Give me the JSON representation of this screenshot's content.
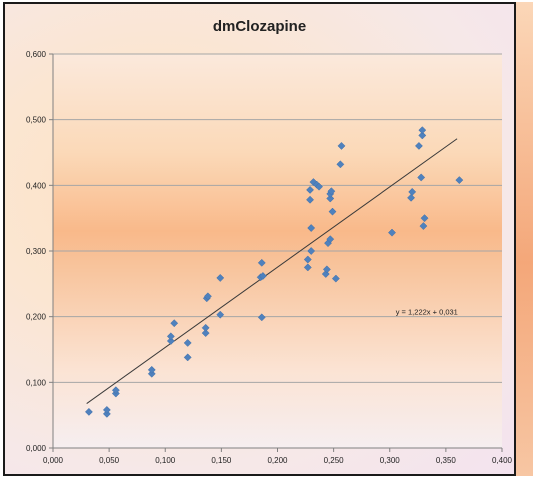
{
  "chart_data": {
    "type": "scatter",
    "title": "dmClozapine",
    "xlabel": "",
    "ylabel": "",
    "xlim": [
      0,
      0.4
    ],
    "ylim": [
      0,
      0.6
    ],
    "x_ticks": [
      "0,000",
      "0,050",
      "0,100",
      "0,150",
      "0,200",
      "0,250",
      "0,300",
      "0,350",
      "0,400"
    ],
    "y_ticks": [
      "0,000",
      "0,100",
      "0,200",
      "0,300",
      "0,400",
      "0,500",
      "0,600"
    ],
    "grid": "horizontal",
    "marker_color": "#4f81bd",
    "trendline": {
      "slope": 1.222,
      "intercept": 0.031,
      "label": "y = 1,222x + 0,031",
      "x_range": [
        0.03,
        0.36
      ]
    },
    "points": [
      [
        0.032,
        0.055
      ],
      [
        0.048,
        0.052
      ],
      [
        0.048,
        0.058
      ],
      [
        0.056,
        0.083
      ],
      [
        0.056,
        0.088
      ],
      [
        0.088,
        0.113
      ],
      [
        0.088,
        0.119
      ],
      [
        0.105,
        0.163
      ],
      [
        0.105,
        0.17
      ],
      [
        0.108,
        0.19
      ],
      [
        0.12,
        0.138
      ],
      [
        0.12,
        0.16
      ],
      [
        0.136,
        0.175
      ],
      [
        0.136,
        0.183
      ],
      [
        0.137,
        0.228
      ],
      [
        0.138,
        0.231
      ],
      [
        0.149,
        0.203
      ],
      [
        0.149,
        0.259
      ],
      [
        0.186,
        0.199
      ],
      [
        0.185,
        0.26
      ],
      [
        0.187,
        0.262
      ],
      [
        0.186,
        0.282
      ],
      [
        0.227,
        0.275
      ],
      [
        0.227,
        0.287
      ],
      [
        0.23,
        0.3
      ],
      [
        0.23,
        0.335
      ],
      [
        0.229,
        0.378
      ],
      [
        0.229,
        0.393
      ],
      [
        0.232,
        0.405
      ],
      [
        0.235,
        0.401
      ],
      [
        0.237,
        0.398
      ],
      [
        0.243,
        0.265
      ],
      [
        0.244,
        0.272
      ],
      [
        0.245,
        0.312
      ],
      [
        0.247,
        0.318
      ],
      [
        0.247,
        0.38
      ],
      [
        0.247,
        0.387
      ],
      [
        0.248,
        0.391
      ],
      [
        0.249,
        0.36
      ],
      [
        0.252,
        0.258
      ],
      [
        0.256,
        0.432
      ],
      [
        0.257,
        0.46
      ],
      [
        0.302,
        0.328
      ],
      [
        0.319,
        0.381
      ],
      [
        0.32,
        0.39
      ],
      [
        0.326,
        0.46
      ],
      [
        0.328,
        0.412
      ],
      [
        0.329,
        0.476
      ],
      [
        0.329,
        0.484
      ],
      [
        0.33,
        0.338
      ],
      [
        0.331,
        0.35
      ],
      [
        0.362,
        0.408
      ]
    ]
  }
}
